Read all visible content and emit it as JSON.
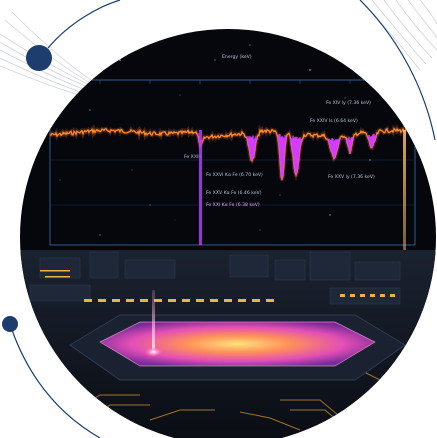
{
  "figure": {
    "plot_title": "Energy (keV)",
    "annotations": [
      {
        "id": "top-right-1",
        "text": "Fe XIV ly (7.36 keV)"
      },
      {
        "id": "top-right-2",
        "text": "Fe XXIV ls (6.64 keV)"
      },
      {
        "id": "right-mid",
        "text": "Fe XXV ly (7.36 keV)"
      },
      {
        "id": "left-axis",
        "text": "Fe XXIII"
      },
      {
        "id": "center-1",
        "text": "Fe XXVI Kα Fe (6.70 keV)"
      },
      {
        "id": "center-2",
        "text": "Fe XXV Kα Fe (6.46 keV)"
      },
      {
        "id": "bottom",
        "text": "Fe XXI Kα Fe (6.38 keV)"
      }
    ],
    "colors": {
      "frame_blue": "#1a3f73",
      "dot_blue": "#1d3d6e",
      "spectrum_orange": "#ff8a2a",
      "spectrum_magenta": "#d23cff",
      "hot_pink": "#ff5fa8",
      "gold": "#e9b24a",
      "sky": "#05070c"
    },
    "icons": [
      "decorative-dot-icon",
      "fan-lines-icon"
    ]
  }
}
